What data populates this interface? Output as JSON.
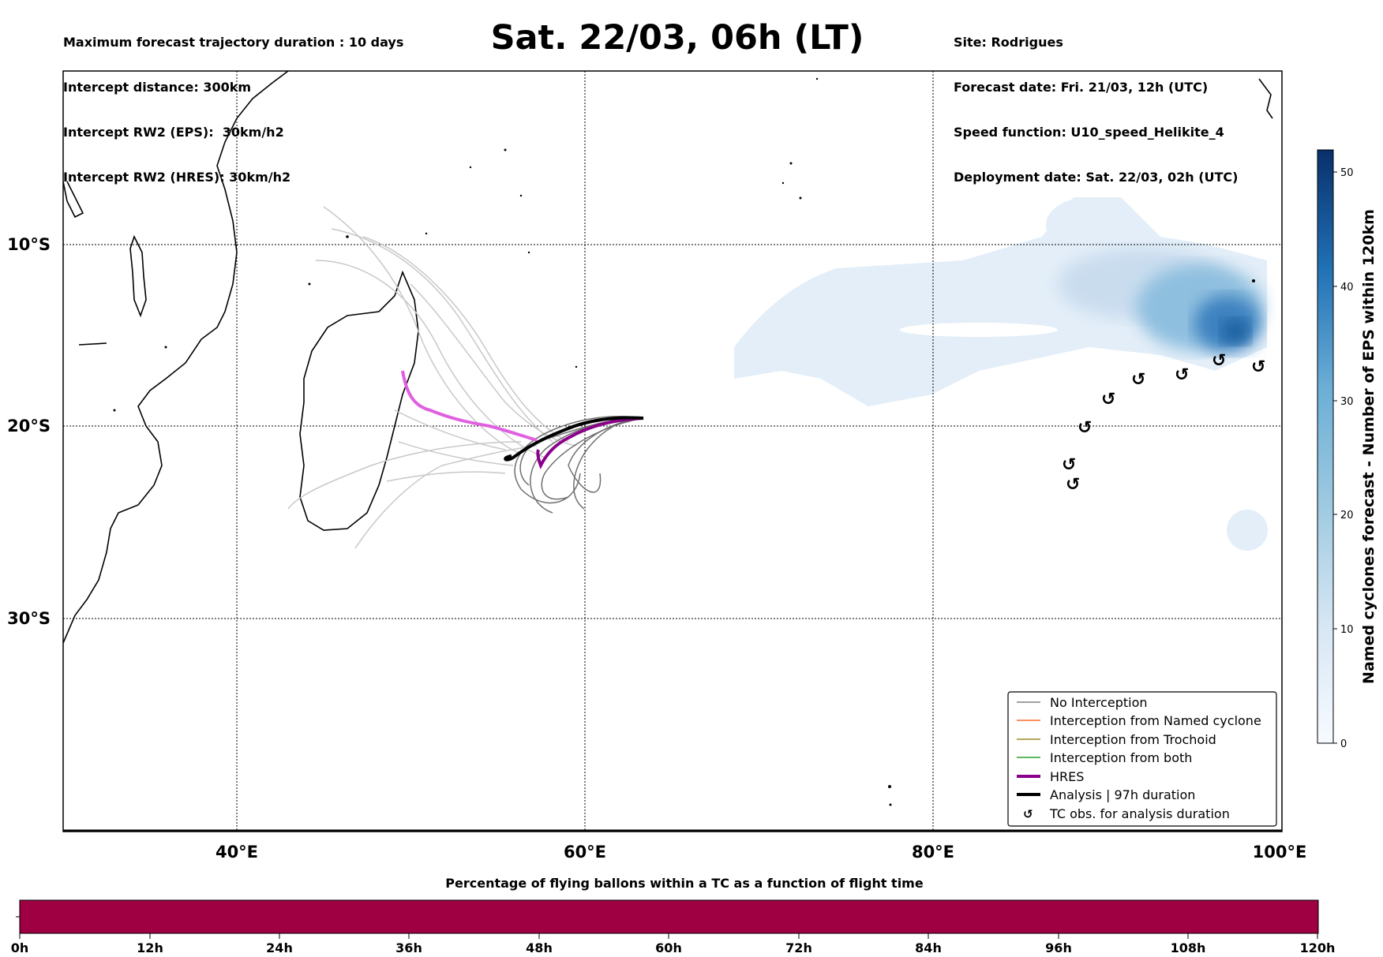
{
  "header_left": [
    "Maximum forecast trajectory duration : 10 days",
    "Intercept distance: 300km",
    "Intercept RW2 (EPS):  30km/h2",
    "Intercept RW2 (HRES): 30km/h2"
  ],
  "header_right": [
    "Site: Rodrigues",
    "Forecast date: Fri. 21/03, 12h (UTC)",
    "Speed function: U10_speed_Helikite_4",
    "Deployment date: Sat. 22/03, 02h (UTC)"
  ],
  "title": "Sat. 22/03, 06h (LT)",
  "map": {
    "lon_ticks": [
      "40°E",
      "60°E",
      "80°E",
      "100°E"
    ],
    "lat_ticks": [
      "10°S",
      "20°S",
      "30°S"
    ],
    "grid": true
  },
  "colorbar": {
    "title": "Named cyclones forecast - Number of EPS within 120km",
    "ticks": [
      "0",
      "10",
      "20",
      "30",
      "40",
      "50"
    ],
    "colors": [
      "#f7fbff",
      "#08306b"
    ]
  },
  "legend": {
    "items": [
      {
        "label": "No Interception",
        "color": "#808080"
      },
      {
        "label": "Interception from Named cyclone",
        "color": "#ff6a2a"
      },
      {
        "label": "Interception from Trochoid",
        "color": "#9a8a20"
      },
      {
        "label": "Interception from both",
        "color": "#2ca02c"
      },
      {
        "label": "HRES",
        "color": "#8b008b"
      },
      {
        "label": "Analysis | 97h duration",
        "color": "#000000"
      },
      {
        "label": "TC obs. for analysis duration",
        "color": "#000000"
      }
    ]
  },
  "time_bar": {
    "title": "Percentage of flying ballons within a TC as a function of flight time",
    "color": "#9e0041",
    "ticks": [
      "0h",
      "12h",
      "24h",
      "36h",
      "48h",
      "60h",
      "72h",
      "84h",
      "96h",
      "108h",
      "120h"
    ]
  }
}
